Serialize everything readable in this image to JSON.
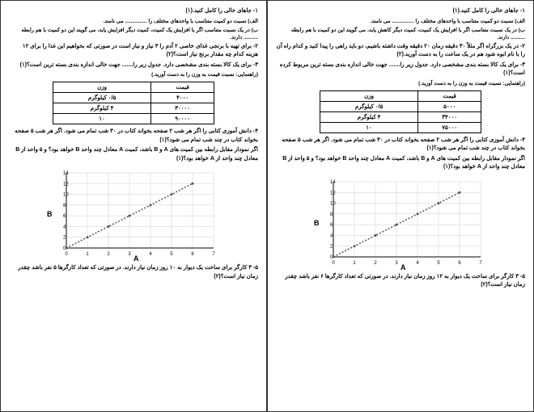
{
  "pages": [
    {
      "q1_title": "۱-   جاهای خالی را کامل کنید.(۱)",
      "q1_a": "الف) نسبت دو کمیت متناسب با واحدهای مختلف را ............... می نامند.",
      "q1_b": "ب) در یک نسبت متناسب اگر با افزایش یک کمیت، کمیت دیگر کاهش یابد، می گویند این دو کمیت با هم رابطه .......... دارند.",
      "q2": "۲-  در یک بزرگراه اگر مثلاً ۳۰ دقیقه زمان ۲۰ دقیقه وقت داشته باشیم، دو باید راهی را پیدا کنید و کدام راه آن را با نام ابوه شود هم در یک ساعت را به دست آورید.(۲)",
      "q3": "۳-  برای یک کالا بسته بندی مشخصی دارد. جدول زیر را....... جهت خالی اندازه بندی بسته ترین مربوط کرده است؟(۱)",
      "table_hint": "(راهنمایی: نسبت قیمت به وزن را به دست آورید.)",
      "table": {
        "headers": [
          "قیمت",
          "وزن"
        ],
        "rows": [
          [
            "۵۰۰۰",
            "۰/۵ کیلوگرم"
          ],
          [
            "۳۴۰۰۰",
            "۴ کیلوگرم"
          ],
          [
            "۷۵۰۰۰",
            "۱۰"
          ]
        ]
      },
      "q4_a": "۴-  دانش آموزی کتابی را اگر هر شب ۲ صفحه بخواند کتاب در ۳۰ شب تمام می شود. اگر هر شب ۵ صفحه بخواند کتاب در چند شب تمام می شود؟(۱)",
      "q4_b": "اگر نمودار مقابل رابطه بین کمیت های A و B باشد، کمیت A معادل چند واحد B خواهد بود؟ و ۵ واحد از B معادل چند واحد از A خواهد بود؟(۱)",
      "chart": {
        "x_ticks": [
          "0",
          "1",
          "2",
          "3",
          "4",
          "5",
          "6",
          "7"
        ],
        "y_ticks": [
          "0",
          "2",
          "4",
          "6",
          "8",
          "10",
          "12",
          "14"
        ],
        "points": [
          [
            0,
            0
          ],
          [
            1,
            2
          ],
          [
            2,
            4
          ],
          [
            3,
            6
          ],
          [
            4,
            8
          ],
          [
            5,
            10
          ],
          [
            6,
            12
          ]
        ],
        "line_color": "#555555",
        "grid_color": "#cccccc",
        "axis_color": "#000000",
        "x_label": "A",
        "y_label": "B"
      },
      "q5": "۵-  ۳ کارگر برای ساخت یک دیوار به ۱۲ روز زمان نیاز دارند. در صورتی که تعداد کارگرها ۶ نفر باشد چقدر زمان نیاز است؟(۲)"
    },
    {
      "q1_title": "۱-   جاهای خالی را کامل کنید.(۱)",
      "q1_a": "الف) نسبت دو کمیت متناسب با واحدهای مختلف را ............... می نامند.",
      "q1_b": "ب) در یک نسبت متناسب اگر با افزایش یک کمیت، کمیت دیگر افزایش یابد، می گویند این دو کمیت با هم رابطه .......... دارند.",
      "q2": "۲-  برای تهیه با برنجی غذای خاصی ۲ آدم را ۳ نیاز و نیاز است در صورتی که بخواهیم این غذا را برای ۱۲ هزینه کدام چه مقدار برنج نیاز است؟(۲)",
      "q3": "۳-  برای یک کالا بسته بندی مشخصی دارد. جدول زیر را....... جهت خالی اندازه بندی بسته ترین است؟(۱)",
      "table_hint": "(راهنمایی: نسبت قیمت به وزن را به دست آورید.)",
      "table": {
        "headers": [
          "قیمت",
          "وزن"
        ],
        "rows": [
          [
            "۴۰۰۰",
            "۰/۵ کیلوگرم"
          ],
          [
            "۳۰۰۰۰",
            "۴ کیلوگرم"
          ],
          [
            "۹۰۰۰۰",
            "۱۰"
          ]
        ]
      },
      "q4_a": "۴-  دانش آموزی کتابی را اگر هر شب ۲ صفحه بخواند کتاب در ۳۰ شب تمام می شود. اگر هر شب ۵ صفحه بخواند کتاب در چند شب تمام می شود؟(۱)",
      "q4_b": "اگر نمودار مقابل رابطه بین کمیت های A و B باشد، کمیت A معادل چند واحد B خواهد بود؟ و ۵ واحد از B معادل چند واحد از A خواهد بود؟(۱)",
      "chart": {
        "x_ticks": [
          "0",
          "1",
          "2",
          "3",
          "4",
          "5",
          "6",
          "7"
        ],
        "y_ticks": [
          "0",
          "2",
          "4",
          "6",
          "8",
          "10",
          "12",
          "14"
        ],
        "points": [
          [
            0,
            0
          ],
          [
            1,
            2
          ],
          [
            2,
            4
          ],
          [
            3,
            6
          ],
          [
            4,
            8
          ],
          [
            5,
            10
          ],
          [
            6,
            12
          ]
        ],
        "line_color": "#555555",
        "grid_color": "#cccccc",
        "axis_color": "#000000",
        "x_label": "A",
        "y_label": "B"
      },
      "q5": "۵-  ۳ کارگر برای ساخت یک دیوار به ۱۰ روز زمان نیاز دارند. در صورتی که تعداد کارگرها ۵ نفر باشد چقدر زمان نیاز است؟(۲)"
    }
  ]
}
